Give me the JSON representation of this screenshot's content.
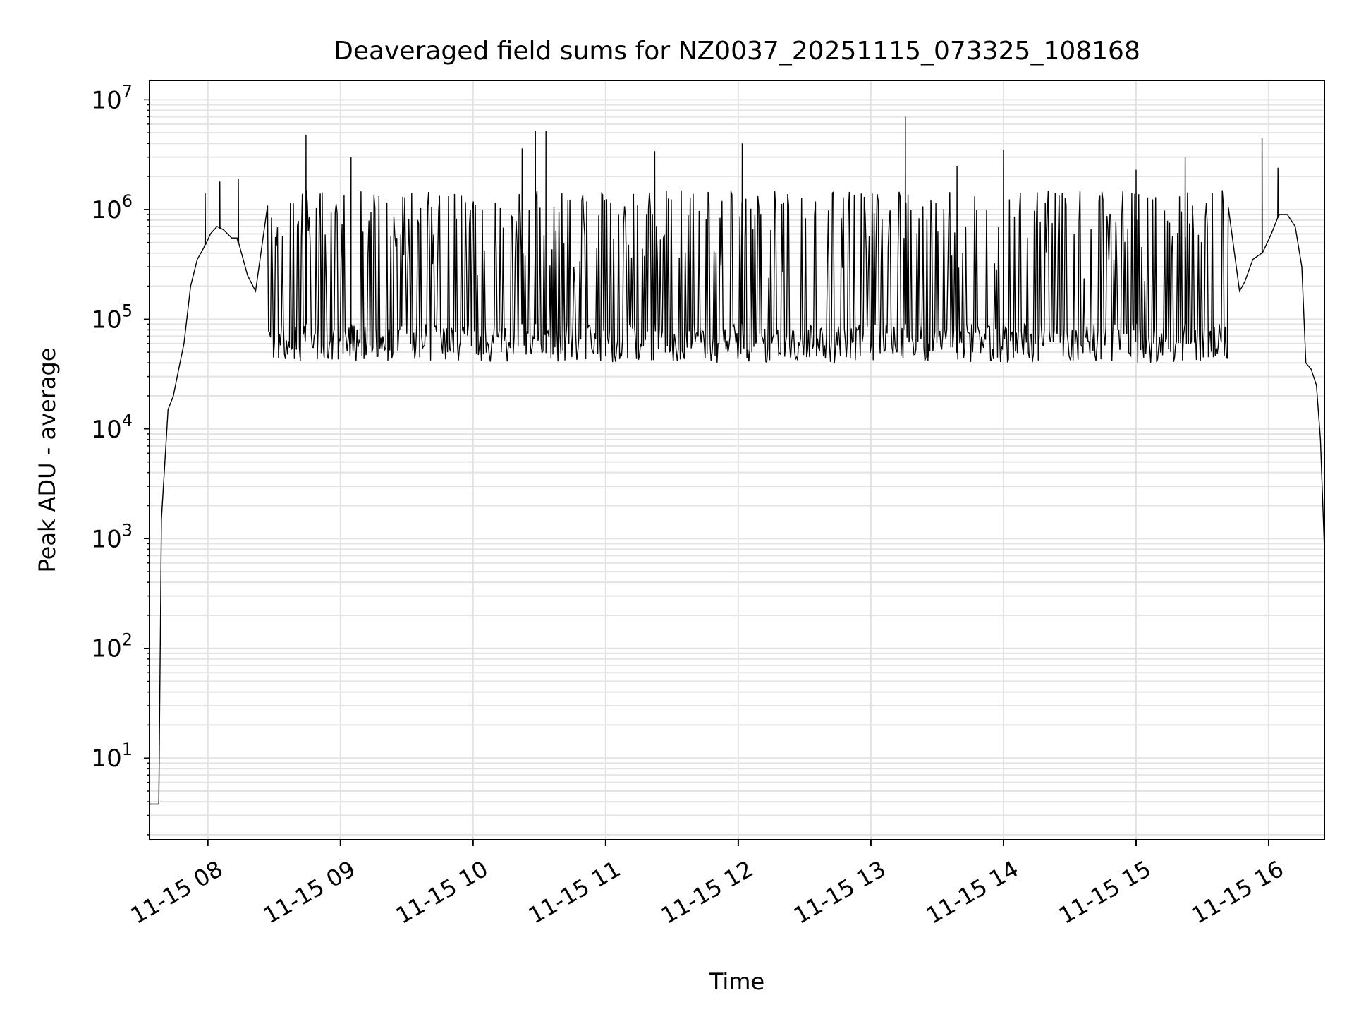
{
  "chart_data": {
    "type": "line",
    "title": "Deaveraged field sums for NZ0037_20251115_073325_108168",
    "xlabel": "Time",
    "ylabel": "Peak ADU - average",
    "yscale": "log",
    "ylim": [
      1.8,
      15000000
    ],
    "xlim_hours": [
      7.56,
      16.42
    ],
    "grid": true,
    "line_color": "#000000",
    "grid_color": "#e3e3e3",
    "x_ticks": [
      {
        "label": "11-15 08",
        "hour": 8
      },
      {
        "label": "11-15 09",
        "hour": 9
      },
      {
        "label": "11-15 10",
        "hour": 10
      },
      {
        "label": "11-15 11",
        "hour": 11
      },
      {
        "label": "11-15 12",
        "hour": 12
      },
      {
        "label": "11-15 13",
        "hour": 13
      },
      {
        "label": "11-15 14",
        "hour": 14
      },
      {
        "label": "11-15 15",
        "hour": 15
      },
      {
        "label": "11-15 16",
        "hour": 16
      }
    ],
    "y_ticks": [
      {
        "base": "10",
        "exp": "1",
        "value": 10
      },
      {
        "base": "10",
        "exp": "2",
        "value": 100
      },
      {
        "base": "10",
        "exp": "3",
        "value": 1000
      },
      {
        "base": "10",
        "exp": "4",
        "value": 10000
      },
      {
        "base": "10",
        "exp": "5",
        "value": 100000
      },
      {
        "base": "10",
        "exp": "6",
        "value": 1000000
      },
      {
        "base": "10",
        "exp": "7",
        "value": 10000000
      }
    ],
    "series": [
      {
        "name": "deaveraged field sum",
        "envelope_points": [
          [
            7.56,
            3.8
          ],
          [
            7.6,
            3.8
          ],
          [
            7.63,
            3.8
          ],
          [
            7.65,
            1500
          ],
          [
            7.7,
            15000
          ],
          [
            7.74,
            20000
          ],
          [
            7.78,
            35000
          ],
          [
            7.82,
            60000
          ],
          [
            7.87,
            200000
          ],
          [
            7.92,
            350000
          ],
          [
            7.97,
            450000
          ],
          [
            8.02,
            600000
          ],
          [
            8.07,
            700000
          ],
          [
            8.12,
            650000
          ],
          [
            8.18,
            550000
          ],
          [
            8.22,
            550000
          ],
          [
            8.3,
            250000
          ],
          [
            8.36,
            180000
          ],
          [
            8.45,
            130000
          ],
          [
            8.55,
            100000
          ],
          [
            15.7,
            130000
          ],
          [
            15.78,
            180000
          ],
          [
            15.82,
            220000
          ],
          [
            15.88,
            350000
          ],
          [
            15.95,
            400000
          ],
          [
            16.02,
            600000
          ],
          [
            16.08,
            900000
          ],
          [
            16.14,
            900000
          ],
          [
            16.2,
            700000
          ],
          [
            16.25,
            300000
          ],
          [
            16.28,
            40000
          ],
          [
            16.32,
            35000
          ],
          [
            16.36,
            25000
          ],
          [
            16.39,
            8000
          ],
          [
            16.42,
            800
          ]
        ],
        "notable_spikes": [
          {
            "hour": 7.98,
            "value": 1400000
          },
          {
            "hour": 8.09,
            "value": 1800000
          },
          {
            "hour": 8.23,
            "value": 1900000
          },
          {
            "hour": 8.74,
            "value": 4800000
          },
          {
            "hour": 9.08,
            "value": 3000000
          },
          {
            "hour": 10.37,
            "value": 3600000
          },
          {
            "hour": 10.47,
            "value": 5200000
          },
          {
            "hour": 10.55,
            "value": 5200000
          },
          {
            "hour": 11.37,
            "value": 3400000
          },
          {
            "hour": 12.03,
            "value": 4000000
          },
          {
            "hour": 13.26,
            "value": 7000000
          },
          {
            "hour": 13.65,
            "value": 2500000
          },
          {
            "hour": 14.0,
            "value": 3500000
          },
          {
            "hour": 15.0,
            "value": 2300000
          },
          {
            "hour": 15.37,
            "value": 3000000
          },
          {
            "hour": 15.95,
            "value": 4500000
          },
          {
            "hour": 16.07,
            "value": 2400000
          }
        ],
        "burst_region": {
          "start_hour": 8.45,
          "end_hour": 15.7,
          "baseline_low": 40000,
          "baseline_high": 90000,
          "spike_typical_high": 1500000,
          "spike_typical_low": 200000
        }
      }
    ]
  }
}
